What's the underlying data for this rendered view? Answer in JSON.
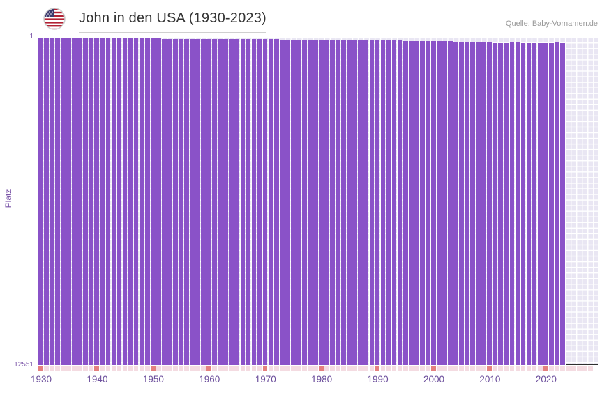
{
  "header": {
    "title": "John in den USA (1930-2023)",
    "source": "Quelle: Baby-Vornamen.de"
  },
  "chart_data": {
    "type": "bar",
    "title": "John in den USA (1930-2023)",
    "xlabel": "",
    "ylabel": "Platz",
    "start_year": 1930,
    "end_year": 2023,
    "x_tick_labels": [
      "1930",
      "1940",
      "1950",
      "1960",
      "1970",
      "1980",
      "1990",
      "2000",
      "2010",
      "2020"
    ],
    "y_axis": {
      "min": 1,
      "max": 12551,
      "inverted": true,
      "top_label": "1",
      "bottom_label": "12551"
    },
    "grid": true,
    "legend": "none",
    "bar_color": "#8a52c8",
    "y_scale_exponent": 0.65,
    "series": [
      {
        "name": "John",
        "values": [
          3,
          3,
          3,
          3,
          3,
          3,
          3,
          3,
          3,
          3,
          3,
          3,
          3,
          3,
          3,
          3,
          3,
          3,
          3,
          3,
          3,
          3,
          4,
          4,
          4,
          4,
          4,
          4,
          4,
          4,
          4,
          4,
          4,
          4,
          4,
          4,
          5,
          5,
          5,
          5,
          5,
          6,
          6,
          7,
          7,
          7,
          8,
          8,
          9,
          9,
          9,
          10,
          10,
          11,
          11,
          10,
          10,
          10,
          11,
          12,
          12,
          13,
          13,
          13,
          13,
          14,
          14,
          14,
          14,
          14,
          14,
          15,
          17,
          17,
          18,
          19,
          20,
          20,
          21,
          23,
          26,
          27,
          27,
          27,
          26,
          26,
          28,
          27,
          27,
          27,
          27,
          27,
          26,
          27
        ]
      }
    ]
  },
  "colors": {
    "bar": "#8a52c8",
    "axis_text": "#7a54a8",
    "x_label_text": "#6c4f9c",
    "grid_background": "#e9e6f3",
    "grid_line": "#ffffff",
    "decade_tick": "#e5807f",
    "minor_tick": "#f4dbe1",
    "title_text": "#333333",
    "source_text": "#999999"
  }
}
